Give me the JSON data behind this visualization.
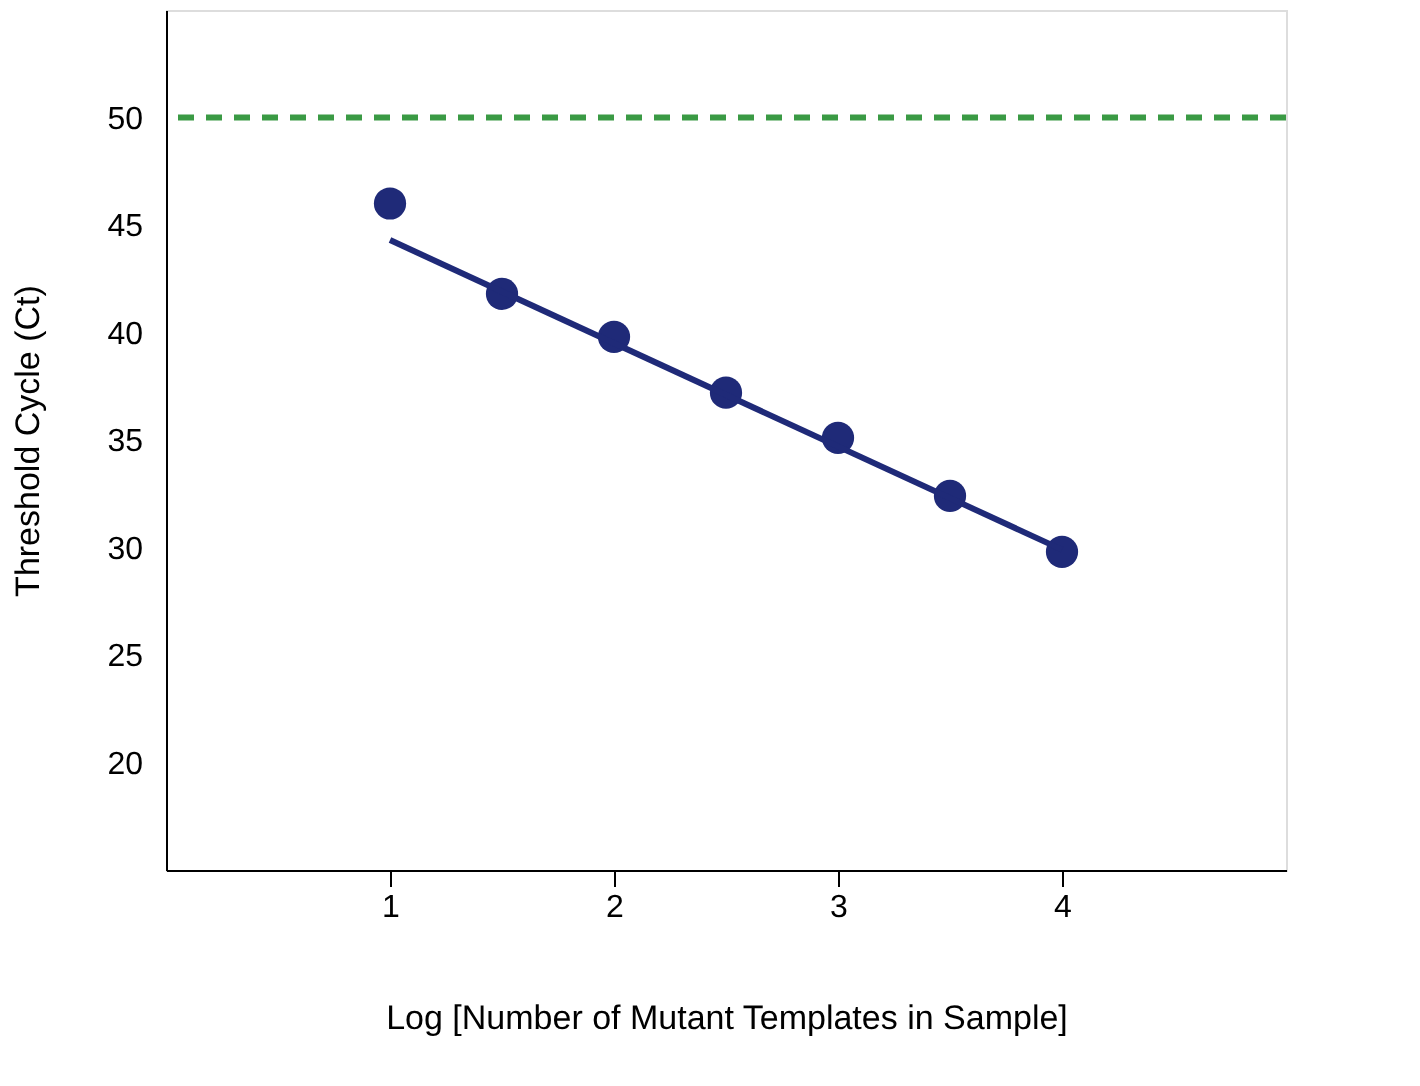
{
  "chart_data": {
    "type": "scatter",
    "xlabel": "Log [Number of Mutant Templates in Sample]",
    "ylabel": "Threshold Cycle (Ct)",
    "series": [
      {
        "color": "#1f2a78",
        "x": [
          1,
          1.5,
          2,
          2.5,
          3,
          3.5,
          4
        ],
        "values": [
          46.0,
          41.8,
          39.8,
          37.2,
          35.1,
          32.4,
          29.8
        ],
        "marker": "circle"
      },
      {
        "type": "line",
        "color": "#1f2a78",
        "x": [
          1,
          4
        ],
        "values": [
          44.3,
          29.9
        ],
        "line_style": "solid"
      }
    ],
    "xlim": [
      0,
      5
    ],
    "ylim": [
      15,
      55
    ],
    "xticks": [
      1,
      2,
      3,
      4
    ],
    "yticks": [
      20,
      25,
      30,
      35,
      40,
      45,
      50
    ],
    "ref_lines": [
      {
        "axis": "y",
        "value": 50,
        "color": "#3a9a44",
        "line_style": "dashed"
      }
    ],
    "grid": false
  }
}
